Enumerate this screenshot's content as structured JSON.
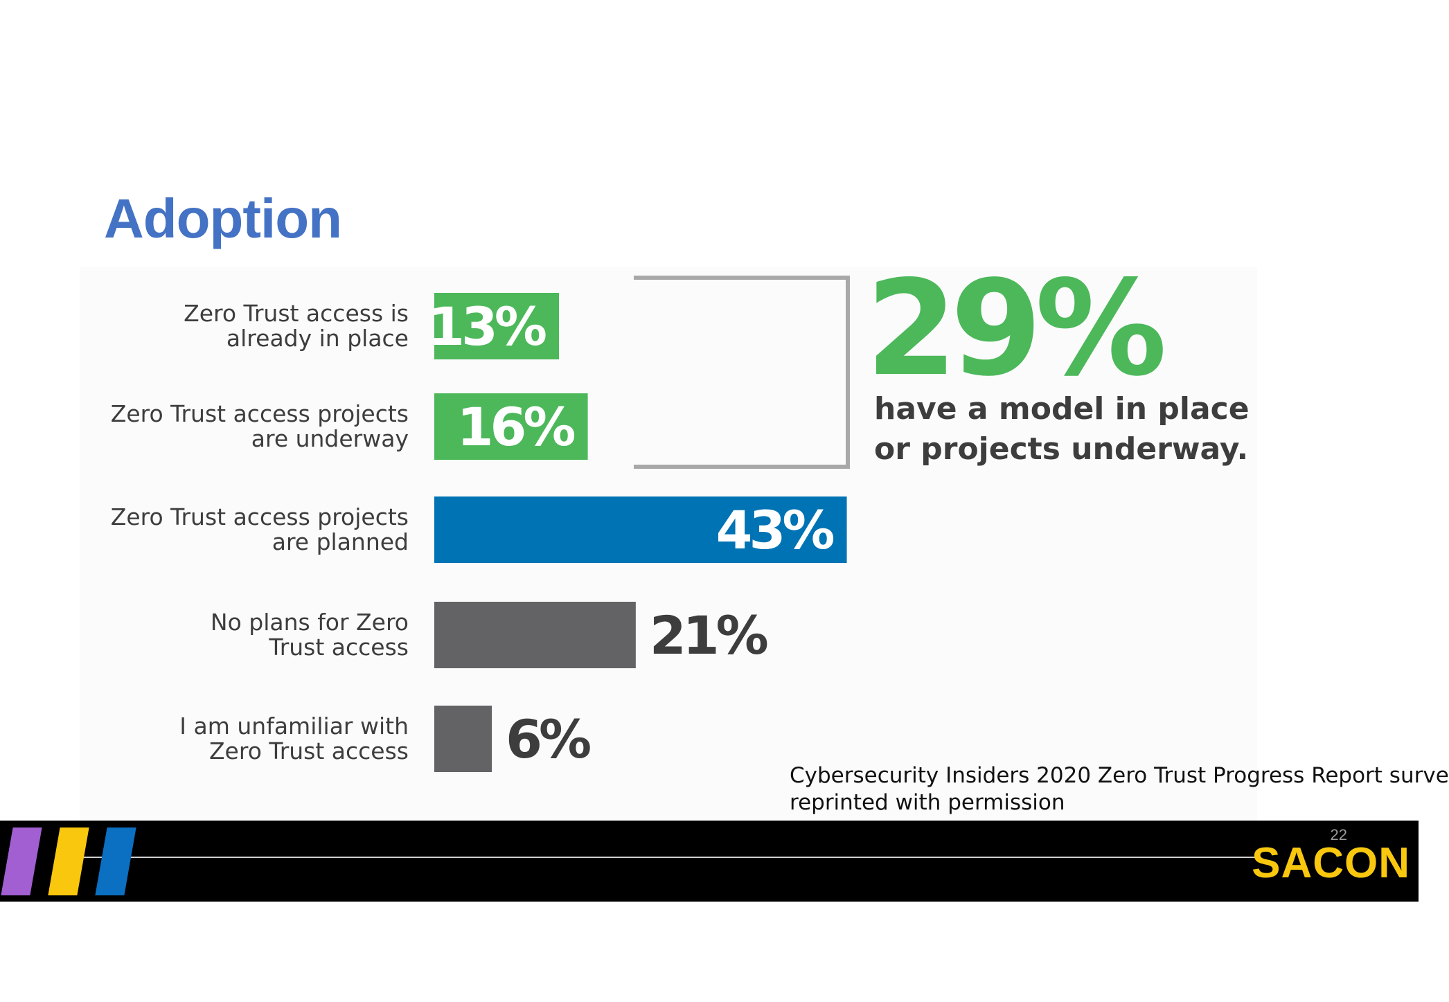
{
  "slide": {
    "title": "Adoption",
    "page_number": "22",
    "brand": "SACON",
    "source_note_line1": "Cybersecurity Insiders 2020 Zero Trust Progress Report surve",
    "source_note_line2": "reprinted with permission"
  },
  "highlight": {
    "value": "29%",
    "text_line1": "have a model in place",
    "text_line2": "or projects underway."
  },
  "colors": {
    "title": "#4472c4",
    "green": "#4cb85a",
    "blue": "#0073b5",
    "gray": "#636265",
    "bracket": "#a8a8a8",
    "brand": "#f9c80e",
    "stripe_purple": "#a15fd1",
    "stripe_yellow": "#f9c80e",
    "stripe_blue": "#0b70c1"
  },
  "chart_data": {
    "type": "bar",
    "orientation": "horizontal",
    "categories": [
      "Zero Trust access is\nalready in place",
      "Zero Trust access projects\nare underway",
      "Zero Trust access projects\nare planned",
      "No plans for Zero\nTrust access",
      "I am unfamiliar with\nZero Trust access"
    ],
    "values": [
      13,
      16,
      43,
      21,
      6
    ],
    "value_labels": [
      "13%",
      "16%",
      "43%",
      "21%",
      "6%"
    ],
    "bar_colors": [
      "#4cb85a",
      "#4cb85a",
      "#0073b5",
      "#636265",
      "#636265"
    ],
    "label_inside": [
      true,
      true,
      true,
      false,
      false
    ],
    "unit": "%",
    "grid": false,
    "bracket_groups": [
      0,
      1
    ]
  }
}
